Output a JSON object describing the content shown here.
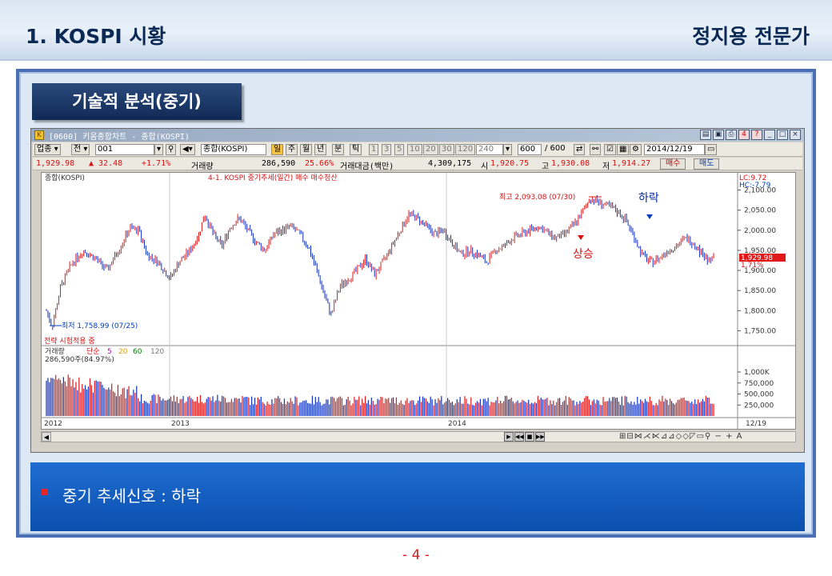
{
  "header": {
    "title_left": "1. KOSPI 시황",
    "title_right": "정지용 전문가"
  },
  "section_tab": "기술적 분석(중기)",
  "window": {
    "title": "[0600] 키움종합차트 - 종합(KOSPI)",
    "icon": "app-icon",
    "buttons": [
      "minimize-icon",
      "maximize-icon",
      "close-icon"
    ]
  },
  "toolbar": {
    "category": "업종",
    "mode": "전",
    "code": "001",
    "name": "종합(KOSPI)",
    "periods": [
      "일",
      "주",
      "월",
      "년",
      "분",
      "틱"
    ],
    "minutes": [
      "1",
      "3",
      "5",
      "10",
      "20",
      "30",
      "120"
    ],
    "tick_count": "240",
    "count": "600",
    "count_total": "/ 600",
    "date": "2014/12/19"
  },
  "quote": {
    "price": "1,929.98",
    "change": "▲ 32.48",
    "change_pct": "+1.71%",
    "volume_label": "거래량",
    "volume": "286,590",
    "volume_pct": "25.66%",
    "amount_label": "거래대금(백만)",
    "amount": "4,309,175",
    "open_label": "시",
    "open": "1,920.75",
    "high_label": "고",
    "high": "1,930.08",
    "low_label": "저",
    "low": "1,914.27",
    "buy_button": "매수",
    "sell_button": "매도"
  },
  "chart_data": {
    "type": "bar",
    "legend_main": "종합(KOSPI)",
    "legend_strategy": "4-1. KOSPI 중기추세(일간) 매수  매수청산",
    "lc_label": "LC:9.72",
    "hc_label": "HC:-7.79",
    "price_axis": [
      "2,100.00",
      "2,050.00",
      "2,000.00",
      "1,950.00",
      "1,900.00",
      "1,850.00",
      "1,800.00",
      "1,750.00"
    ],
    "price_ticks": [
      2100,
      2050,
      2000,
      1950,
      1900,
      1850,
      1800,
      1750
    ],
    "ylim": [
      1733,
      2123
    ],
    "current_price_tag": "1,929.98",
    "current_pct_tag": "1.71%",
    "annotations": {
      "high": "최고 2,093.08 (07/30)",
      "low": "최저 1,758.99 (07/25)",
      "rise": "상승",
      "fall": "하락",
      "strategy": "전략 시험적용 중"
    },
    "volume_legend": {
      "label": "거래량",
      "ma_label": "단순",
      "ma": [
        "5",
        "20",
        "60",
        "120"
      ],
      "value": "286,590주(84.97%)"
    },
    "volume_axis": [
      "1,000K",
      "750,000",
      "500,000",
      "250,000"
    ],
    "volume_ticks": [
      1000000,
      750000,
      500000,
      250000
    ],
    "volume_ylim": [
      0,
      1200000
    ],
    "x_labels": [
      "2012",
      "2013",
      "2014",
      "12/19"
    ],
    "close_path_points": [
      [
        0,
        1800
      ],
      [
        2,
        1760
      ],
      [
        5,
        1860
      ],
      [
        9,
        1920
      ],
      [
        13,
        1950
      ],
      [
        17,
        1930
      ],
      [
        21,
        1900
      ],
      [
        25,
        1950
      ],
      [
        29,
        2005
      ],
      [
        32,
        2000
      ],
      [
        35,
        1940
      ],
      [
        39,
        1920
      ],
      [
        43,
        1880
      ],
      [
        46,
        1920
      ],
      [
        50,
        1950
      ],
      [
        53,
        1990
      ],
      [
        55,
        2040
      ],
      [
        58,
        1990
      ],
      [
        61,
        1960
      ],
      [
        64,
        2010
      ],
      [
        67,
        2030
      ],
      [
        70,
        2000
      ],
      [
        73,
        1970
      ],
      [
        76,
        1950
      ],
      [
        79,
        1990
      ],
      [
        82,
        2000
      ],
      [
        85,
        2010
      ],
      [
        88,
        1990
      ],
      [
        91,
        1960
      ],
      [
        94,
        1900
      ],
      [
        97,
        1830
      ],
      [
        99,
        1790
      ],
      [
        102,
        1860
      ],
      [
        105,
        1880
      ],
      [
        108,
        1900
      ],
      [
        111,
        1930
      ],
      [
        114,
        1890
      ],
      [
        117,
        1920
      ],
      [
        120,
        1960
      ],
      [
        123,
        2000
      ],
      [
        126,
        2040
      ],
      [
        129,
        2030
      ],
      [
        132,
        2010
      ],
      [
        135,
        1990
      ],
      [
        138,
        2000
      ],
      [
        141,
        1970
      ],
      [
        144,
        1940
      ],
      [
        147,
        1950
      ],
      [
        150,
        1940
      ],
      [
        153,
        1920
      ],
      [
        156,
        1950
      ],
      [
        159,
        1960
      ],
      [
        162,
        1980
      ],
      [
        165,
        1990
      ],
      [
        168,
        2000
      ],
      [
        171,
        2010
      ],
      [
        174,
        1995
      ],
      [
        177,
        1980
      ],
      [
        180,
        1990
      ],
      [
        183,
        2010
      ],
      [
        186,
        2040
      ],
      [
        189,
        2080
      ],
      [
        192,
        2070
      ],
      [
        195,
        2060
      ],
      [
        198,
        2050
      ],
      [
        201,
        2030
      ],
      [
        204,
        1990
      ],
      [
        207,
        1940
      ],
      [
        210,
        1920
      ],
      [
        213,
        1930
      ],
      [
        216,
        1950
      ],
      [
        219,
        1960
      ],
      [
        222,
        1980
      ],
      [
        225,
        1970
      ],
      [
        228,
        1940
      ],
      [
        230,
        1925
      ],
      [
        232,
        1930
      ]
    ]
  },
  "signal": {
    "text": "중기 추세신호 : 하락"
  },
  "page_number": "- 4 -"
}
